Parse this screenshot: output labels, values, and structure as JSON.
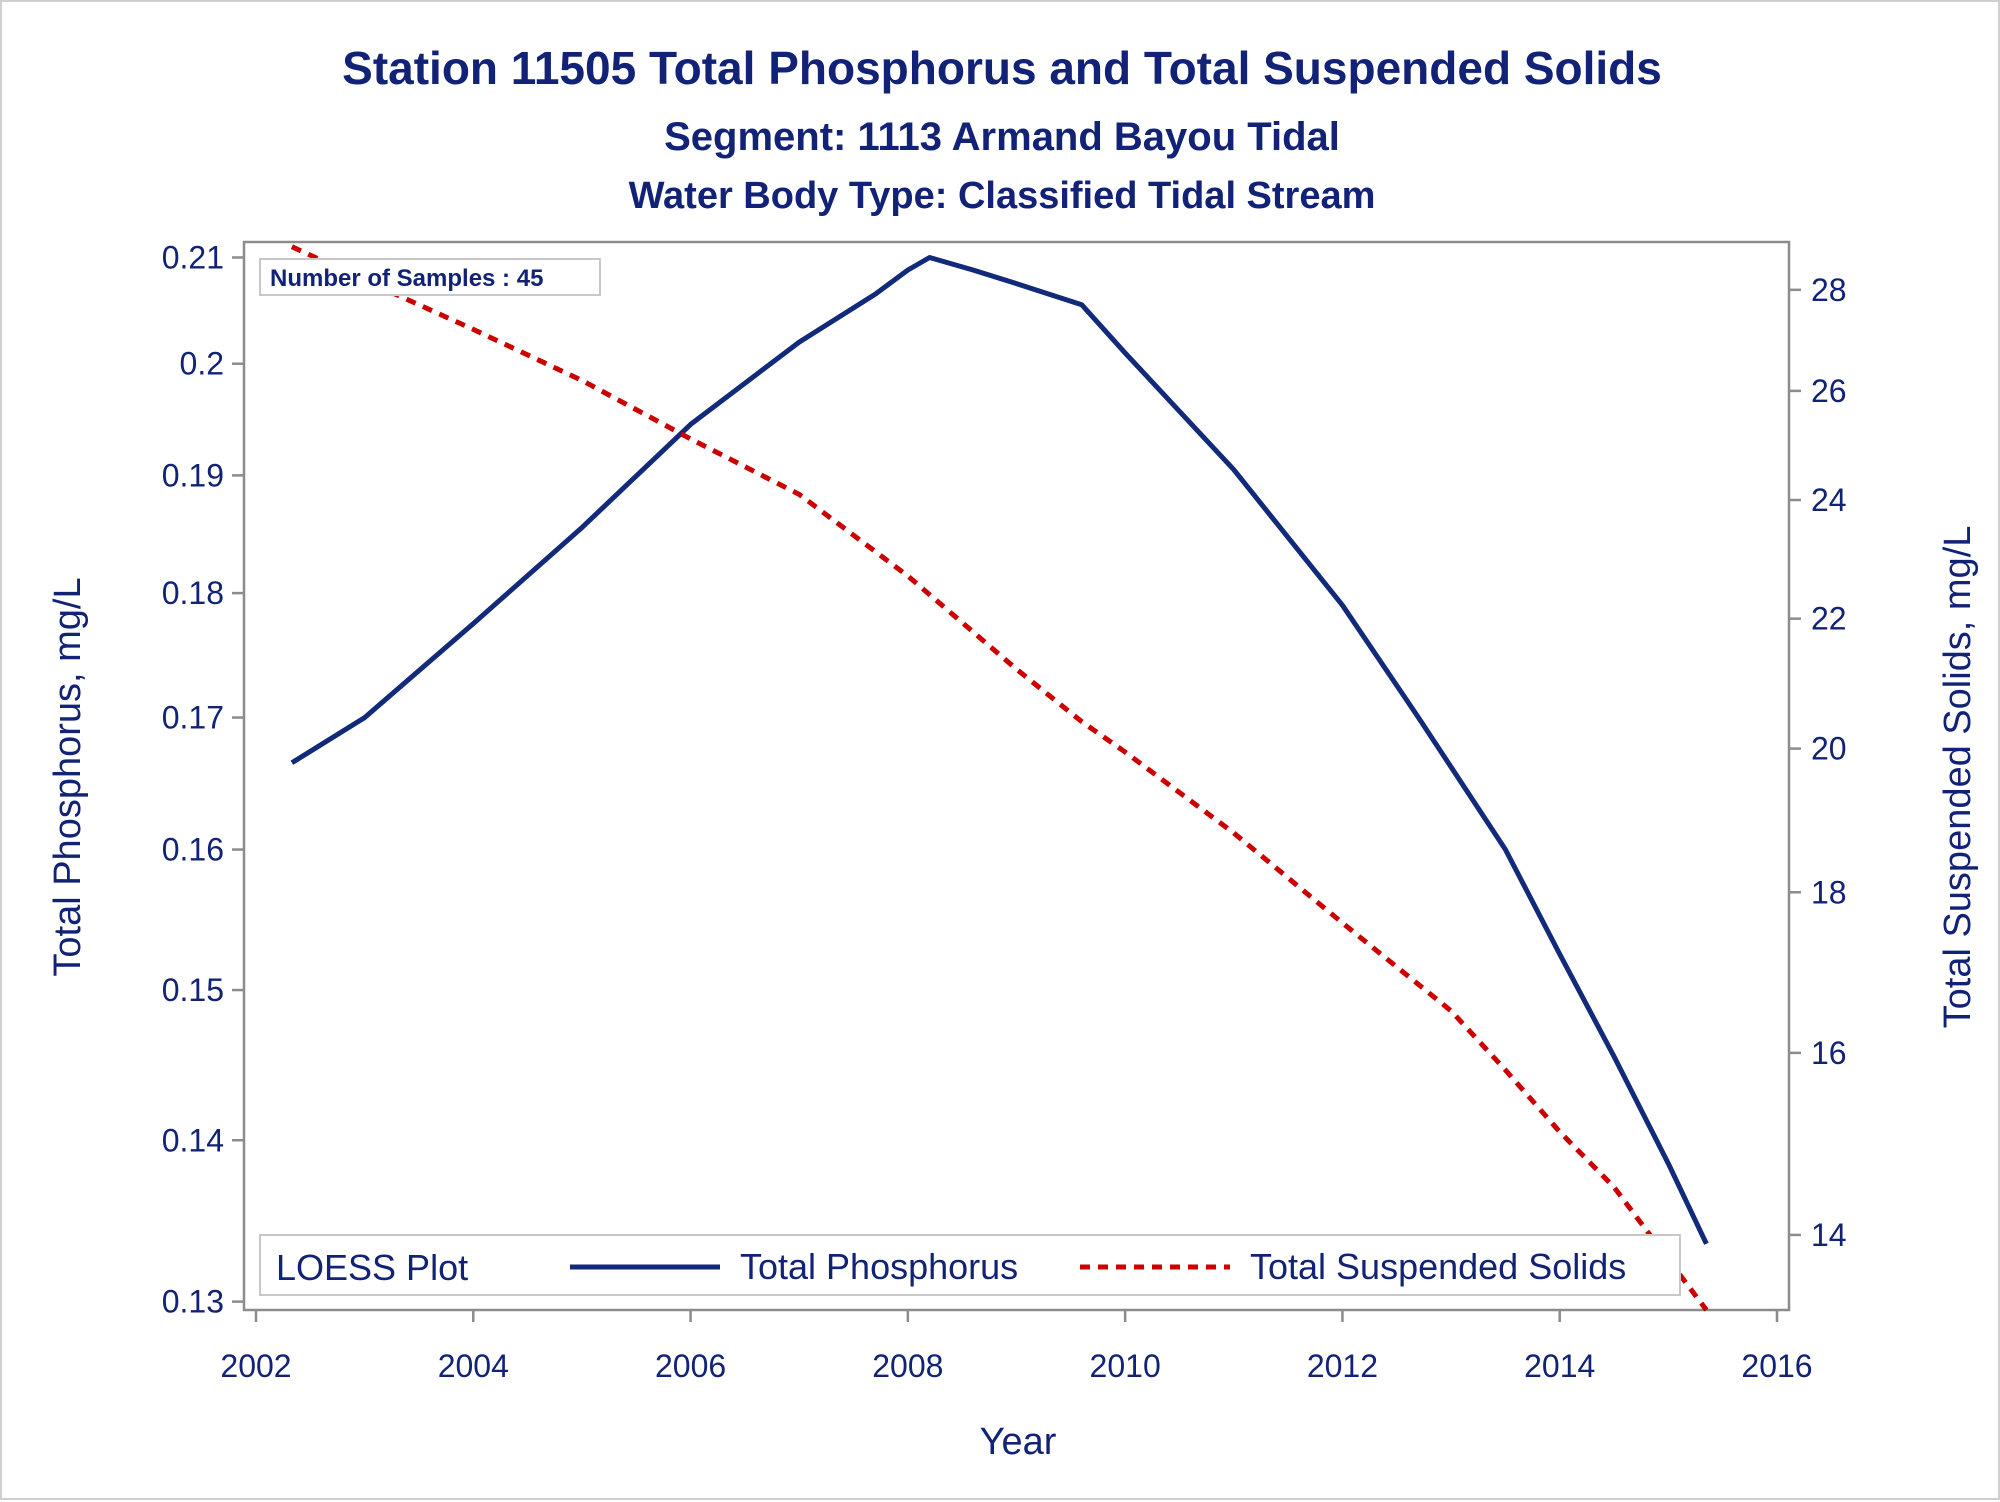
{
  "chart_data": {
    "type": "line",
    "title": "Station 11505  Total Phosphorus and Total Suspended Solids",
    "subtitle": "Segment: 1113  Armand Bayou Tidal",
    "subtitle2": "Water Body Type: Classified Tidal Stream",
    "xlabel": "Year",
    "ylabel_left": "Total Phosphorus, mg/L",
    "ylabel_right": "Total Suspended Solids, mg/L",
    "x_ticks": [
      "2002",
      "2004",
      "2006",
      "2008",
      "2010",
      "2012",
      "2014",
      "2016"
    ],
    "y_left_ticks": [
      "0.13",
      "0.14",
      "0.15",
      "0.16",
      "0.17",
      "0.18",
      "0.19",
      "0.2",
      "0.21"
    ],
    "y_right_ticks": [
      "14",
      "16",
      "18",
      "20",
      "22",
      "24",
      "26",
      "28"
    ],
    "xlim": [
      2002,
      2016
    ],
    "ylim_left": [
      0.1295,
      0.2115
    ],
    "ylim_right": [
      13.25,
      29.0
    ],
    "y_scale": "log",
    "annotation": "Number of Samples : 45",
    "legend_title": "LOESS Plot",
    "legend_position": "bottom-inside",
    "colors": {
      "text": "#112277",
      "phosphorus": "#112a7a",
      "tss": "#cc0000",
      "axis": "#8c8c8c"
    },
    "series": [
      {
        "name": "Total Phosphorus",
        "axis": "left",
        "style": "solid",
        "x": [
          2002.33,
          2003.0,
          2004.0,
          2005.0,
          2006.0,
          2007.0,
          2007.7,
          2008.0,
          2008.2,
          2008.6,
          2009.0,
          2009.6,
          2010.0,
          2011.0,
          2012.0,
          2012.7,
          2013.5,
          2014.0,
          2014.5,
          2015.0,
          2015.35
        ],
        "y": [
          0.1665,
          0.17,
          0.1775,
          0.1855,
          0.1945,
          0.202,
          0.2065,
          0.2088,
          0.21,
          0.2088,
          0.2075,
          0.2055,
          0.201,
          0.1905,
          0.179,
          0.17,
          0.16,
          0.1525,
          0.1455,
          0.1385,
          0.1335
        ]
      },
      {
        "name": "Total Suspended Solids",
        "axis": "right",
        "style": "dashed",
        "x": [
          2002.33,
          2003.0,
          2004.0,
          2005.0,
          2006.0,
          2007.0,
          2008.0,
          2009.0,
          2009.6,
          2010.0,
          2011.0,
          2012.0,
          2013.0,
          2013.5,
          2014.0,
          2014.5,
          2015.0,
          2015.35
        ],
        "y": [
          28.9,
          28.2,
          27.2,
          26.2,
          25.1,
          24.1,
          22.7,
          21.2,
          20.4,
          19.95,
          18.8,
          17.6,
          16.5,
          15.8,
          15.1,
          14.5,
          13.75,
          13.25
        ]
      }
    ]
  }
}
